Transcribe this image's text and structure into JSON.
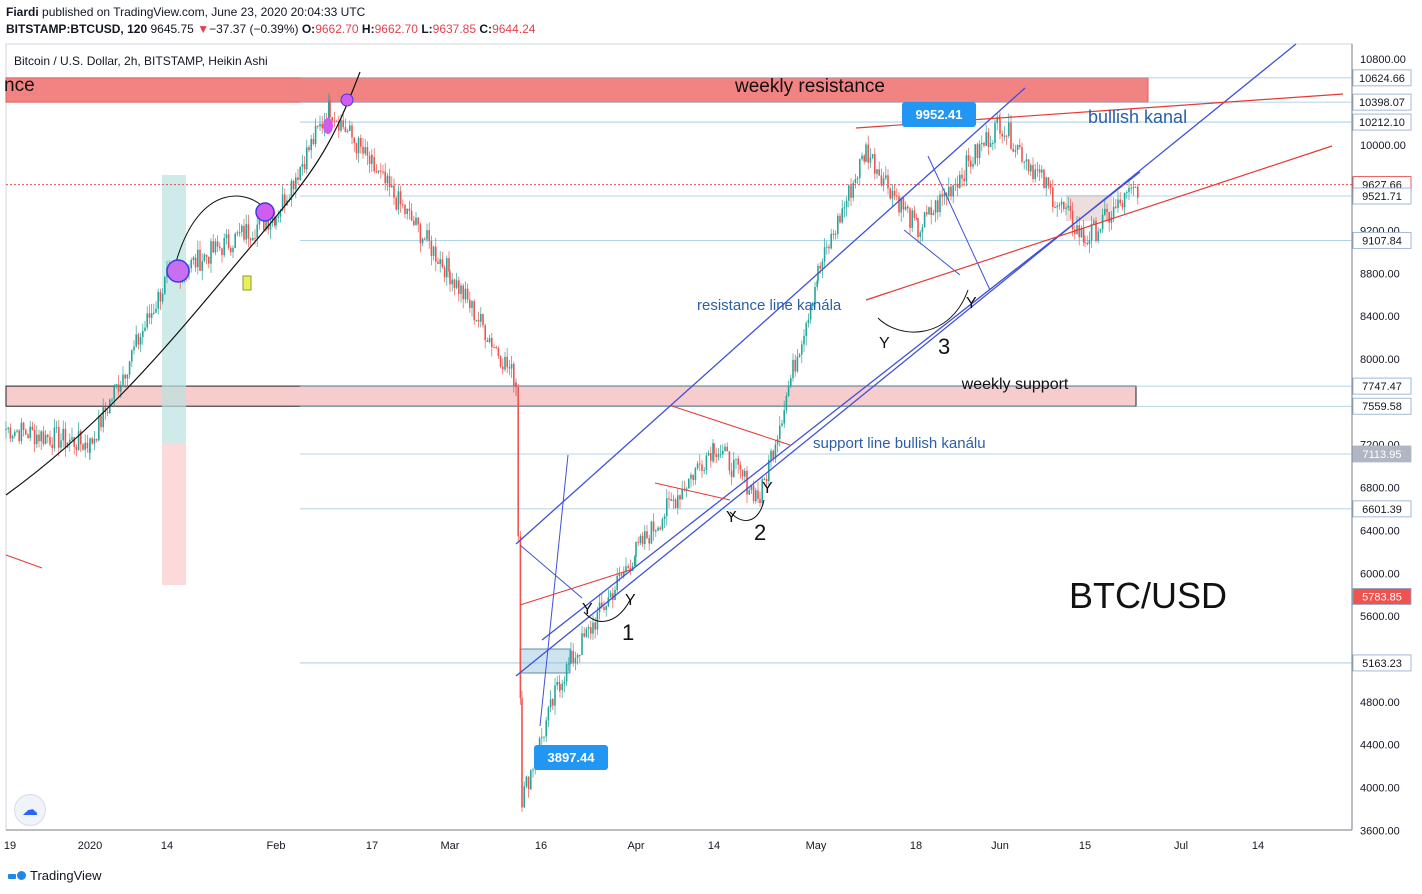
{
  "header": {
    "publisher": "Fiardi",
    "published_text": "published on TradingView.com, June 23, 2020 20:04:33 UTC",
    "symbol": "BITSTAMP:BTCUSD, 120",
    "last": "9645.75",
    "change_arrow": "▼",
    "change": "−37.37 (−0.39%)",
    "o_label": "O:",
    "o": "9662.70",
    "h_label": "H:",
    "h": "9662.70",
    "l_label": "L:",
    "l": "9637.85",
    "c_label": "C:",
    "c": "9644.24"
  },
  "chart_data": {
    "type": "candlestick",
    "subtitle": "Bitcoin / U.S. Dollar, 2h, BITSTAMP, Heikin Ashi",
    "watermark": "BTC/USD",
    "ylim": [
      3450,
      10900
    ],
    "y_ticks": [
      "10800.00",
      "10000.00",
      "9200.00",
      "8800.00",
      "8400.00",
      "8000.00",
      "7200.00",
      "6800.00",
      "6400.00",
      "6000.00",
      "5600.00",
      "4800.00",
      "4400.00",
      "4000.00",
      "3600.00"
    ],
    "price_labels": [
      {
        "text": "10624.66",
        "value": 10624.66,
        "style": "level"
      },
      {
        "text": "10398.07",
        "value": 10398.07,
        "style": "level"
      },
      {
        "text": "10212.10",
        "value": 10212.1,
        "style": "level"
      },
      {
        "text": "9627.66",
        "value": 9627.66,
        "style": "current"
      },
      {
        "text": "9521.71",
        "value": 9521.71,
        "style": "level"
      },
      {
        "text": "9107.84",
        "value": 9107.84,
        "style": "level"
      },
      {
        "text": "7747.47",
        "value": 7747.47,
        "style": "level"
      },
      {
        "text": "7559.58",
        "value": 7559.58,
        "style": "level"
      },
      {
        "text": "7113.95",
        "value": 7113.95,
        "style": "dark"
      },
      {
        "text": "6601.39",
        "value": 6601.39,
        "style": "level"
      },
      {
        "text": "5783.85",
        "value": 5783.85,
        "style": "red"
      },
      {
        "text": "5163.23",
        "value": 5163.23,
        "style": "level"
      }
    ],
    "x_ticks": [
      "19",
      "2020",
      "14",
      "Feb",
      "17",
      "Mar",
      "16",
      "Apr",
      "14",
      "May",
      "18",
      "Jun",
      "15",
      "Jul",
      "14"
    ],
    "price_path": [
      [
        "19",
        7350
      ],
      [
        "2020",
        7200
      ],
      [
        "14",
        8750
      ],
      [
        "Feb",
        9350
      ],
      [
        "Feb-mid",
        10350
      ],
      [
        "17",
        9800
      ],
      [
        "Mar",
        8800
      ],
      [
        "Mar-late",
        7800
      ],
      [
        "16",
        3897.44
      ],
      [
        "16-b",
        5000
      ],
      [
        "Apr",
        6200
      ],
      [
        "Apr-mid",
        7200
      ],
      [
        "14",
        6700
      ],
      [
        "May",
        8800
      ],
      [
        "May-mid",
        9952.41
      ],
      [
        "18",
        9200
      ],
      [
        "Jun",
        10212.1
      ],
      [
        "15",
        9107.84
      ],
      [
        "Jun-end",
        9627.66
      ]
    ],
    "callouts": [
      {
        "text": "9952.41",
        "value": 9952.41
      },
      {
        "text": "3897.44",
        "value": 3897.44
      }
    ],
    "zones": [
      {
        "label": "weekly resistance",
        "partial_label": "nce",
        "from": 10398.07,
        "to": 10624.66
      },
      {
        "label": "weekly support",
        "from": 7559.58,
        "to": 7747.47
      }
    ],
    "annotations": [
      "bullish kanal",
      "resistance line kanála",
      "support line bullish kanálu",
      "1",
      "2",
      "3",
      "Y"
    ],
    "colors": {
      "up": "#26a69a",
      "down": "#ef5350",
      "channel": "#3f51d8",
      "trend": "#e53935",
      "resistance_zone": "#f28383",
      "support_zone": "#f6cccc",
      "label_blue": "#1e88e5"
    }
  },
  "footer": {
    "brand": "TradingView"
  }
}
